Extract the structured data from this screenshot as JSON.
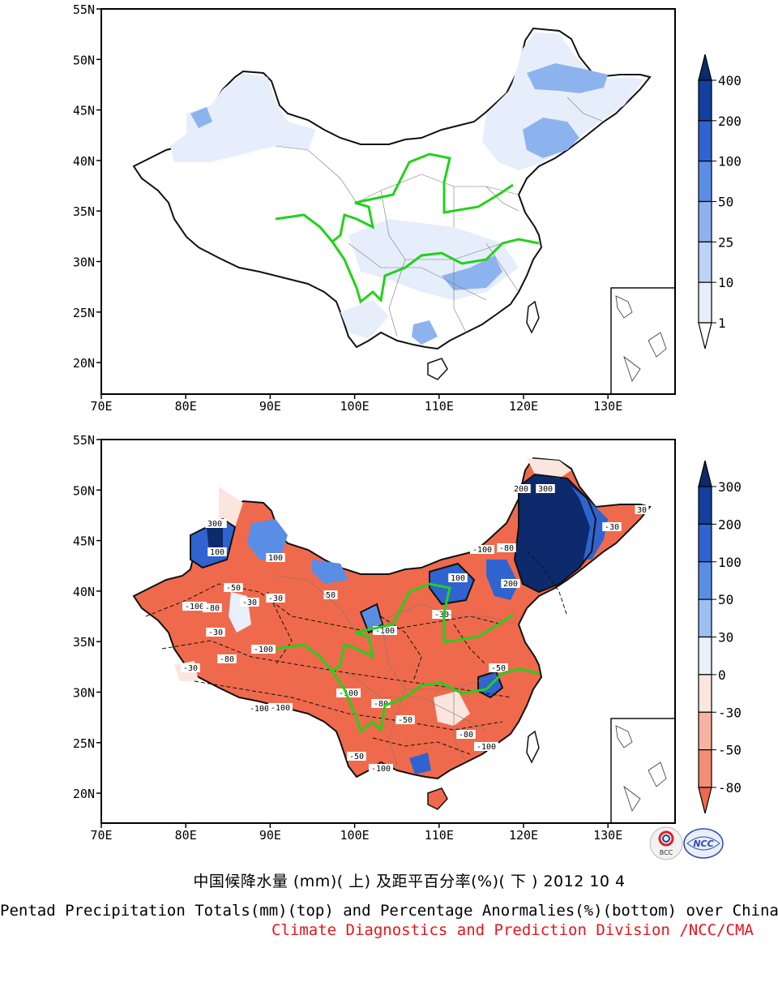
{
  "top_panel": {
    "lat_labels": [
      "55N",
      "50N",
      "45N",
      "40N",
      "35N",
      "30N",
      "25N",
      "20N"
    ],
    "lon_labels": [
      "70E",
      "80E",
      "90E",
      "100E",
      "110E",
      "120E",
      "130E"
    ],
    "colorbar": {
      "labels": [
        "400",
        "200",
        "100",
        "50",
        "25",
        "10",
        "1"
      ],
      "colors": [
        "#0c2a6c",
        "#12409e",
        "#2f64d0",
        "#5a8ee4",
        "#8db3ef",
        "#bcd2f6",
        "#e6eefb",
        "#ffffff"
      ]
    }
  },
  "bottom_panel": {
    "lat_labels": [
      "55N",
      "50N",
      "45N",
      "40N",
      "35N",
      "30N",
      "25N",
      "20N"
    ],
    "lon_labels": [
      "70E",
      "80E",
      "90E",
      "100E",
      "110E",
      "120E",
      "130E"
    ],
    "colorbar": {
      "labels": [
        "300",
        "200",
        "100",
        "50",
        "30",
        "0",
        "-30",
        "-50",
        "-80"
      ],
      "colors": [
        "#0c2a6c",
        "#12409e",
        "#2f64d0",
        "#5a8ee4",
        "#9cc0f2",
        "#e8f0fb",
        "#fbe6df",
        "#f7b3a1",
        "#f38d73",
        "#ef6a4c"
      ]
    },
    "contour_labels": [
      "-100",
      "-100",
      "-100",
      "-100",
      "-100",
      "-100",
      "-100",
      "-100",
      "-100",
      "-80",
      "-80",
      "-80",
      "-80",
      "-80",
      "-50",
      "-50",
      "-50",
      "-50",
      "-30",
      "-30",
      "-30",
      "-30",
      "-30",
      "-30",
      "100",
      "100",
      "100",
      "200",
      "200",
      "200",
      "300",
      "300",
      "30",
      "50"
    ]
  },
  "footer": {
    "title_zh": "中国候降水量 (mm)( 上) 及距平百分率(%)( 下 ) 2012 10 4",
    "title_en": "Pentad Precipitation Totals(mm)(top) and Percentage Anormalies(%)(bottom) over China",
    "credit": "Climate Diagnostics and Prediction Division /NCC/CMA",
    "logos": [
      "BCC",
      "NCC"
    ]
  }
}
